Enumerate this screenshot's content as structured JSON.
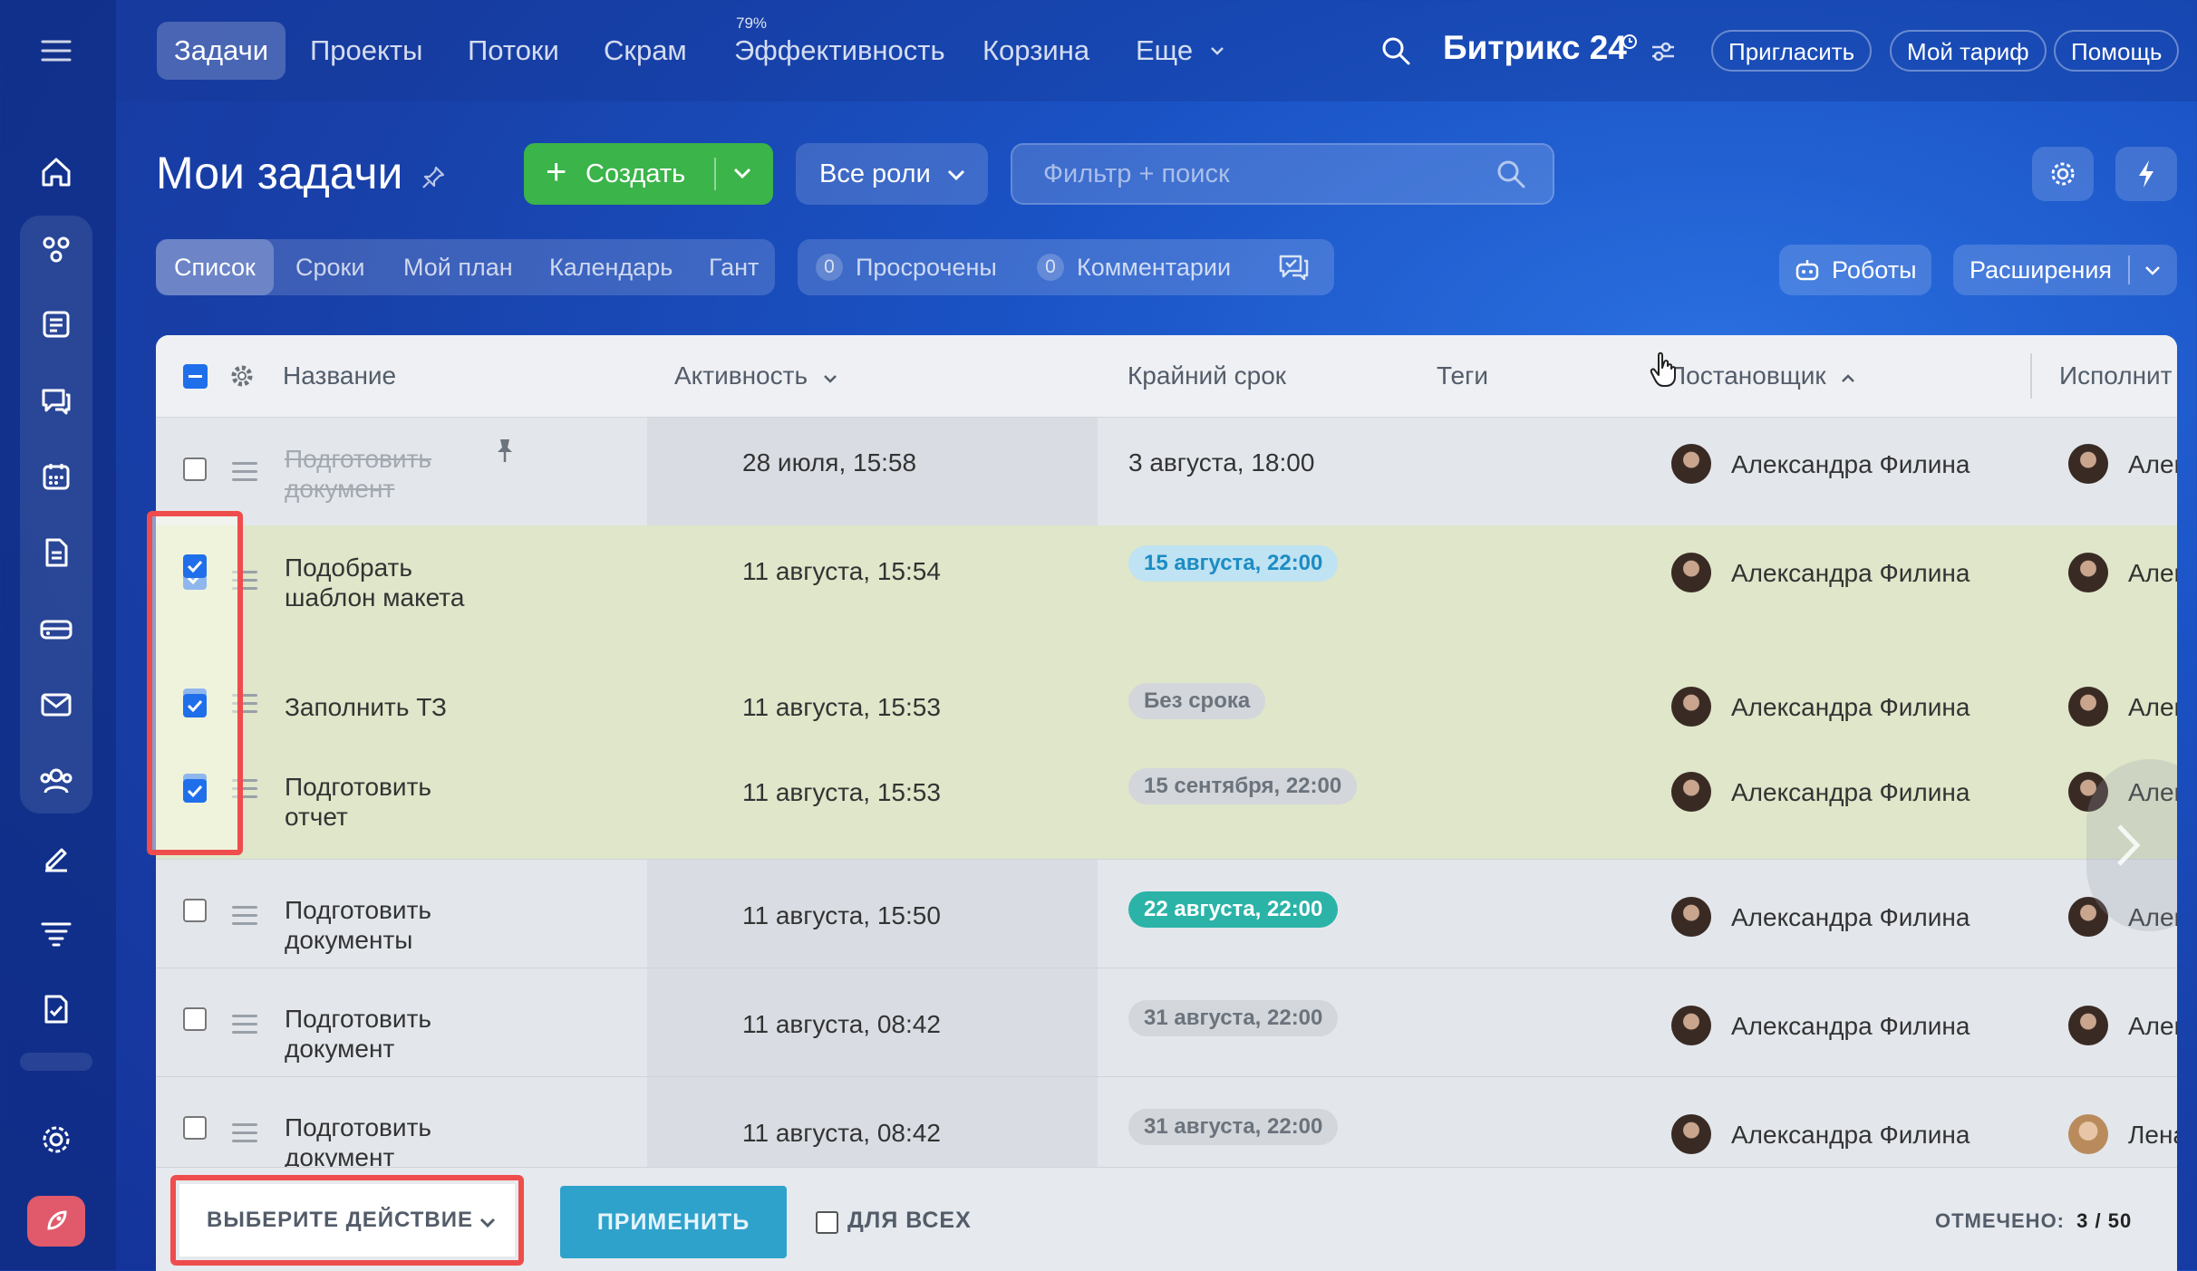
{
  "nav": {
    "items": [
      "Задачи",
      "Проекты",
      "Потоки",
      "Скрам",
      "Эффективность",
      "Корзина",
      "Еще"
    ],
    "efficiency_badge": "79%",
    "brand": "Битрикс 24",
    "invite": "Пригласить",
    "tariff": "Мой тариф",
    "help": "Помощь"
  },
  "toolbar": {
    "title": "Мои задачи",
    "create": "Создать",
    "roles": "Все роли",
    "search_placeholder": "Фильтр + поиск"
  },
  "views": {
    "tabs": [
      "Список",
      "Сроки",
      "Мой план",
      "Календарь",
      "Гант"
    ],
    "overdue_count": "0",
    "overdue_label": "Просрочены",
    "comments_count": "0",
    "comments_label": "Комментарии",
    "robots": "Роботы",
    "extensions": "Расширения"
  },
  "grid": {
    "columns": [
      "Название",
      "Активность",
      "Крайний срок",
      "Теги",
      "Постановщик",
      "Исполнит"
    ],
    "rows": [
      {
        "name": "Подготовить документ",
        "activity": "28 июля, 15:58",
        "deadline": "3 августа, 18:00",
        "creator": "Александра Филина",
        "assignee": "Алекс",
        "checked": false,
        "done": true
      },
      {
        "name": "Подобрать шаблон макета",
        "activity": "11 августа, 15:54",
        "deadline": "15 августа, 22:00",
        "creator": "Александра Филина",
        "assignee": "Алекс",
        "checked": true
      },
      {
        "name": "Заполнить ТЗ",
        "activity": "11 августа, 15:53",
        "deadline": "Без срока",
        "creator": "Александра Филина",
        "assignee": "Алекс",
        "checked": true
      },
      {
        "name": "Подготовить отчет",
        "activity": "11 августа, 15:53",
        "deadline": "15 сентября, 22:00",
        "creator": "Александра Филина",
        "assignee": "Алекс",
        "checked": true
      },
      {
        "name": "Подготовить документы",
        "activity": "11 августа, 15:50",
        "deadline": "22 августа, 22:00",
        "creator": "Александра Филина",
        "assignee": "Алекс",
        "checked": false
      },
      {
        "name": "Подготовить документ",
        "activity": "11 августа, 08:42",
        "deadline": "31 августа, 22:00",
        "creator": "Александра Филина",
        "assignee": "Алекс",
        "checked": false
      },
      {
        "name": "Подготовить документ",
        "activity": "11 августа, 08:42",
        "deadline": "31 августа, 22:00",
        "creator": "Александра Филина",
        "assignee": "Лена",
        "checked": false
      }
    ]
  },
  "footer": {
    "action": "ВЫБЕРИТЕ ДЕЙСТВИЕ",
    "apply": "ПРИМЕНИТЬ",
    "for_all": "ДЛЯ ВСЕХ",
    "selected_label": "ОТМЕЧЕНО:",
    "selected_value": "3 / 50"
  },
  "colors": {
    "create_green": "#3bb44a",
    "apply_teal": "#2fa2cc",
    "highlight_red": "#ef4d4d",
    "checkbox_blue": "#1f6feb"
  },
  "icons": [
    "menu-icon",
    "home-icon",
    "tasks-icon",
    "feed-icon",
    "chat-icon",
    "calendar-icon",
    "docs-icon",
    "drive-icon",
    "mail-icon",
    "contacts-icon",
    "sign-icon",
    "marketing-icon",
    "checklist-icon",
    "settings-icon",
    "rocket-icon",
    "search-icon",
    "pin-icon",
    "gear-icon",
    "lightning-icon",
    "robot-icon",
    "chevron-down-icon"
  ]
}
